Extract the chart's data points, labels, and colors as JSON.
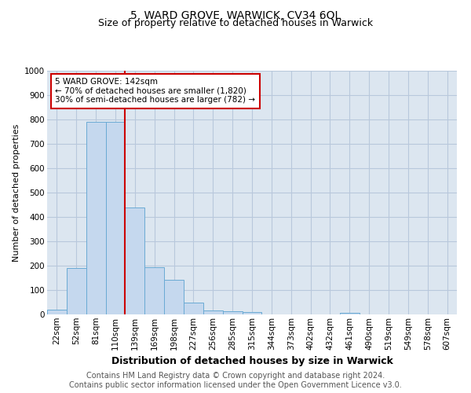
{
  "title": "5, WARD GROVE, WARWICK, CV34 6QL",
  "subtitle": "Size of property relative to detached houses in Warwick",
  "xlabel": "Distribution of detached houses by size in Warwick",
  "ylabel": "Number of detached properties",
  "categories": [
    "22sqm",
    "52sqm",
    "81sqm",
    "110sqm",
    "139sqm",
    "169sqm",
    "198sqm",
    "227sqm",
    "256sqm",
    "285sqm",
    "315sqm",
    "344sqm",
    "373sqm",
    "402sqm",
    "432sqm",
    "461sqm",
    "490sqm",
    "519sqm",
    "549sqm",
    "578sqm",
    "607sqm"
  ],
  "values": [
    18,
    190,
    790,
    790,
    440,
    195,
    142,
    48,
    15,
    12,
    10,
    0,
    0,
    0,
    0,
    8,
    0,
    0,
    0,
    0,
    0
  ],
  "bar_color": "#c5d8ee",
  "bar_edge_color": "#6aaad4",
  "annotation_text": "5 WARD GROVE: 142sqm\n← 70% of detached houses are smaller (1,820)\n30% of semi-detached houses are larger (782) →",
  "annotation_box_color": "#ffffff",
  "annotation_box_edge_color": "#cc0000",
  "red_line_color": "#cc0000",
  "footer_line1": "Contains HM Land Registry data © Crown copyright and database right 2024.",
  "footer_line2": "Contains public sector information licensed under the Open Government Licence v3.0.",
  "title_fontsize": 10,
  "subtitle_fontsize": 9,
  "ylabel_fontsize": 8,
  "xlabel_fontsize": 9,
  "tick_fontsize": 7.5,
  "footer_fontsize": 7,
  "ylim": [
    0,
    1000
  ],
  "background_color": "#ffffff",
  "axes_bg_color": "#dce6f0",
  "grid_color": "#b8c8dc"
}
